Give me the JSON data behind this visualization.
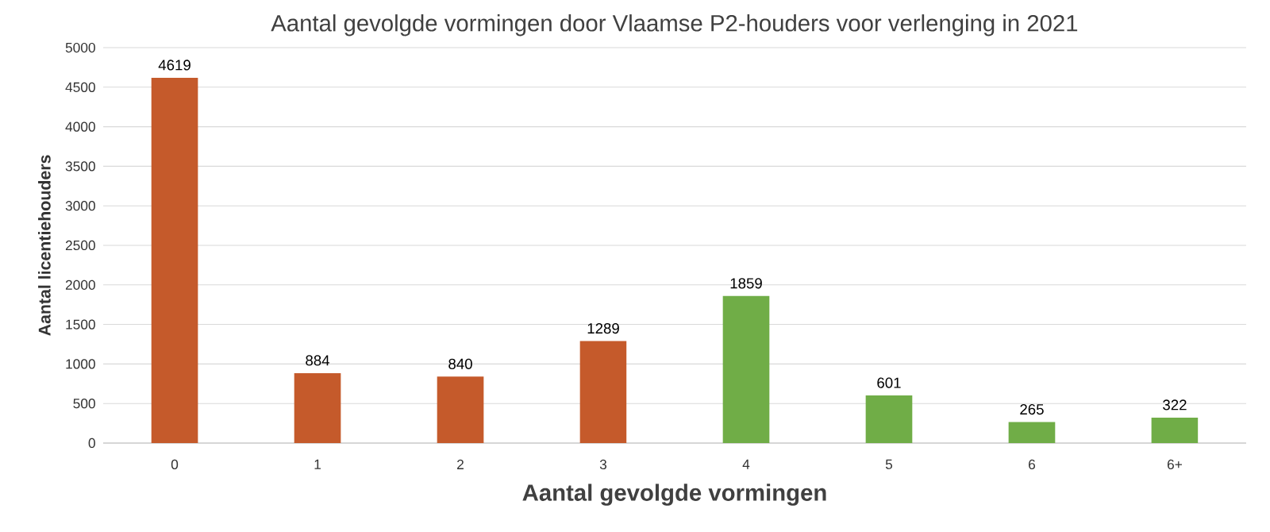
{
  "chart_data": {
    "type": "bar",
    "title": "Aantal gevolgde vormingen door Vlaamse P2-houders voor verlenging in 2021",
    "xlabel": "Aantal gevolgde vormingen",
    "ylabel": "Aantal licentiehouders",
    "categories": [
      "0",
      "1",
      "2",
      "3",
      "4",
      "5",
      "6",
      "6+"
    ],
    "values": [
      4619,
      884,
      840,
      1289,
      1859,
      601,
      265,
      322
    ],
    "colors": [
      "#c55a2b",
      "#c55a2b",
      "#c55a2b",
      "#c55a2b",
      "#70ad47",
      "#70ad47",
      "#70ad47",
      "#70ad47"
    ],
    "ylim": [
      0,
      5000
    ],
    "yticks": [
      0,
      500,
      1000,
      1500,
      2000,
      2500,
      3000,
      3500,
      4000,
      4500,
      5000
    ],
    "grid": "y",
    "data_labels": true
  }
}
